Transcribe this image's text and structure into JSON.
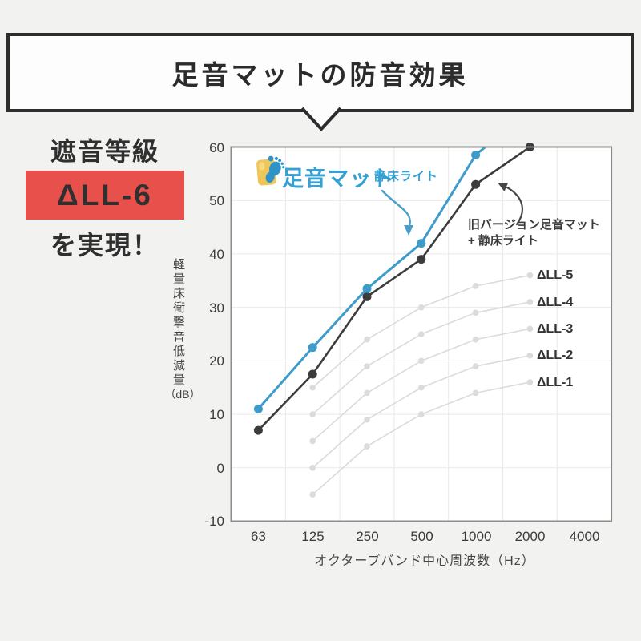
{
  "title_box": {
    "text": "足音マットの防音効果"
  },
  "badge": {
    "line1": "遮音等級",
    "rating": "ΔLL-6",
    "line2": "を実現！",
    "rating_bg": "#e8514b"
  },
  "legend": {
    "brand": "足音マット",
    "suffix": "+ 静床ライト",
    "brand_color": "#35a0d2",
    "tile_color": "#f0c65b",
    "foot_color": "#2e93c6"
  },
  "annotation": {
    "line1": "旧バージョン足音マット",
    "line2": "+ 静床ライト"
  },
  "axes": {
    "y_label": "軽量床衝撃音低減量",
    "y_unit": "（dB）",
    "x_label": "オクターブバンド中心周波数（Hz）",
    "y_ticks": [
      "60",
      "50",
      "40",
      "30",
      "20",
      "10",
      "0",
      "-10"
    ],
    "x_ticks": [
      "63",
      "125",
      "250",
      "500",
      "1000",
      "2000",
      "4000"
    ]
  },
  "chart_data": {
    "type": "line",
    "title": "足音マットの防音効果",
    "xlabel": "オクターブバンド中心周波数（Hz）",
    "ylabel": "軽量床衝撃音低減量（dB）",
    "x_categories": [
      63,
      125,
      250,
      500,
      1000,
      2000,
      4000
    ],
    "ylim": [
      -10,
      60
    ],
    "grid": true,
    "colors": {
      "plot_bg": "#ffffff",
      "grid": "#e9e9e9",
      "border": "#8c8c8c"
    },
    "series": [
      {
        "name": "足音マット＋静床ライト",
        "color": "#3e9cca",
        "line_width": 3,
        "point_radius": 5.5,
        "values": [
          11,
          22.5,
          33.5,
          42,
          58.5,
          null,
          null
        ],
        "offscale_to_value": 67,
        "note": "line continues above 60 dB after 1000 Hz (clipped at plot top)"
      },
      {
        "name": "旧バージョン足音マット＋静床ライト",
        "color": "#3c3c3c",
        "line_width": 2.6,
        "point_radius": 5.5,
        "values": [
          7,
          17.5,
          32,
          39,
          53,
          60,
          null
        ]
      },
      {
        "name": "ΔLL-5",
        "label": "ΔLL-5",
        "color": "#dbdbdb",
        "line_width": 1.6,
        "point_radius": 3.8,
        "values": [
          null,
          15,
          24,
          30,
          34,
          36,
          null
        ]
      },
      {
        "name": "ΔLL-4",
        "label": "ΔLL-4",
        "color": "#dbdbdb",
        "line_width": 1.6,
        "point_radius": 3.8,
        "values": [
          null,
          10,
          19,
          25,
          29,
          31,
          null
        ]
      },
      {
        "name": "ΔLL-3",
        "label": "ΔLL-3",
        "color": "#dbdbdb",
        "line_width": 1.6,
        "point_radius": 3.8,
        "values": [
          null,
          5,
          14,
          20,
          24,
          26,
          null
        ]
      },
      {
        "name": "ΔLL-2",
        "label": "ΔLL-2",
        "color": "#dbdbdb",
        "line_width": 1.6,
        "point_radius": 3.8,
        "values": [
          null,
          0,
          9,
          15,
          19,
          21,
          null
        ]
      },
      {
        "name": "ΔLL-1",
        "label": "ΔLL-1",
        "color": "#dbdbdb",
        "line_width": 1.6,
        "point_radius": 3.8,
        "values": [
          null,
          -5,
          4,
          10,
          14,
          16,
          null
        ]
      }
    ]
  }
}
